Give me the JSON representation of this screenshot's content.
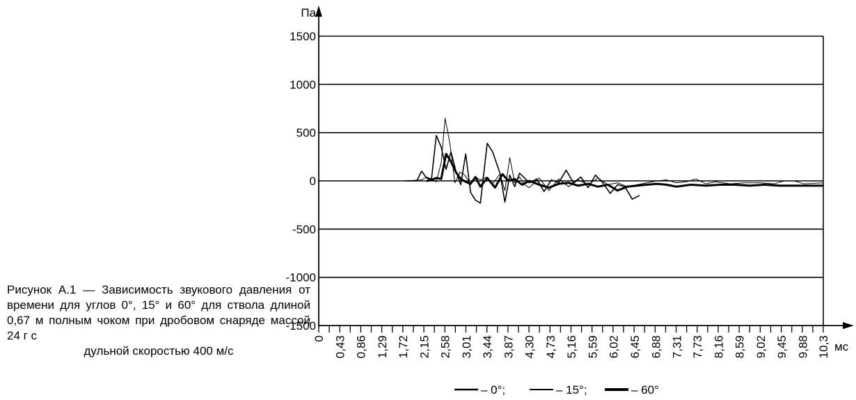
{
  "caption": {
    "text": "Рисунок А.1 — Зависимость звукового давления от времени для углов 0°, 15° и 60° для ствола длиной 0,67 м полным чоком при дробовом снаряде массой 24 г с",
    "last_line": "дульной скоростью 400 м/с"
  },
  "chart_data": {
    "type": "line",
    "title": "",
    "ylabel": "Па",
    "xlabel": "мс",
    "ylim": [
      -1500,
      1500
    ],
    "yticks": [
      1500,
      1000,
      500,
      0,
      -500,
      -1000,
      -1500
    ],
    "ytick_labels": [
      "1500",
      "1000",
      "500",
      "0",
      "-500",
      "-1000",
      "-1500"
    ],
    "xlim": [
      0,
      10.3
    ],
    "xticks": [
      0,
      0.43,
      0.86,
      1.29,
      1.72,
      2.15,
      2.58,
      3.01,
      3.44,
      3.87,
      4.3,
      4.73,
      5.16,
      5.59,
      6.02,
      6.45,
      6.88,
      7.31,
      7.73,
      8.16,
      8.59,
      9.02,
      9.45,
      9.88,
      10.3
    ],
    "xtick_labels": [
      "0",
      "0,43",
      "0,86",
      "1,29",
      "1,72",
      "2,15",
      "2,58",
      "3,01",
      "3,44",
      "3,87",
      "4,30",
      "4,73",
      "5,16",
      "5,59",
      "6,02",
      "6,45",
      "6,88",
      "7,31",
      "7,73",
      "8,16",
      "8,59",
      "9,02",
      "9,45",
      "9,88",
      "10,3"
    ],
    "grid": "horizontal",
    "legend_position": "bottom",
    "legend_separator": "; ",
    "series": [
      {
        "name": "– 0°",
        "color": "#000000",
        "x": [
          1.75,
          2.0,
          2.1,
          2.2,
          2.3,
          2.4,
          2.5,
          2.6,
          2.7,
          2.8,
          2.9,
          3.0,
          3.1,
          3.2,
          3.3,
          3.44,
          3.55,
          3.7,
          3.8,
          3.9,
          4.0,
          4.1,
          4.2,
          4.3,
          4.45,
          4.6,
          4.75,
          4.9,
          5.05,
          5.2,
          5.35,
          5.5,
          5.65,
          5.8,
          5.95,
          6.1,
          6.25,
          6.4,
          6.55
        ],
        "y": [
          0,
          0,
          100,
          30,
          10,
          470,
          350,
          120,
          300,
          100,
          -40,
          280,
          -120,
          -200,
          -230,
          390,
          300,
          80,
          -220,
          60,
          -60,
          80,
          30,
          -20,
          20,
          -110,
          10,
          -20,
          110,
          -20,
          40,
          -70,
          60,
          -20,
          -130,
          -40,
          -60,
          -190,
          -150
        ]
      },
      {
        "name": "– 15°",
        "color": "#000000",
        "x": [
          1.75,
          2.1,
          2.2,
          2.3,
          2.4,
          2.5,
          2.58,
          2.68,
          2.78,
          2.88,
          2.98,
          3.1,
          3.2,
          3.3,
          3.44,
          3.55,
          3.7,
          3.8,
          3.9,
          4.0,
          4.1,
          4.2,
          4.3,
          4.5,
          4.7,
          4.9,
          5.1,
          5.3,
          5.5,
          5.7,
          5.9,
          6.1,
          6.3,
          6.5,
          6.7,
          6.9,
          7.1,
          7.3,
          7.5,
          7.7,
          7.9,
          8.1,
          8.4,
          8.7,
          9.0,
          9.3,
          9.5,
          9.7,
          9.9,
          10.3
        ],
        "y": [
          0,
          10,
          40,
          20,
          -10,
          190,
          650,
          380,
          -20,
          90,
          60,
          -30,
          40,
          10,
          40,
          -30,
          70,
          -100,
          240,
          -20,
          40,
          -40,
          -70,
          30,
          -100,
          20,
          -60,
          10,
          -40,
          30,
          -40,
          -20,
          -60,
          -40,
          -20,
          0,
          10,
          -20,
          -10,
          20,
          -30,
          -10,
          -30,
          -20,
          -20,
          -30,
          0,
          0,
          -30,
          -20
        ]
      },
      {
        "name": "– 60°",
        "color": "#000000",
        "x": [
          2.2,
          2.3,
          2.4,
          2.5,
          2.6,
          2.7,
          2.8,
          2.9,
          3.0,
          3.1,
          3.2,
          3.3,
          3.44,
          3.6,
          3.75,
          3.87,
          4.0,
          4.15,
          4.3,
          4.5,
          4.7,
          4.9,
          5.1,
          5.3,
          5.5,
          5.7,
          5.9,
          6.1,
          6.3,
          6.5,
          6.7,
          6.9,
          7.1,
          7.3,
          7.6,
          7.9,
          8.2,
          8.5,
          8.8,
          9.1,
          9.4,
          9.7,
          10.0,
          10.3
        ],
        "y": [
          0,
          10,
          30,
          20,
          280,
          200,
          90,
          20,
          -10,
          -30,
          40,
          -60,
          30,
          -70,
          70,
          0,
          20,
          -40,
          0,
          -40,
          -70,
          -30,
          -20,
          -50,
          -30,
          -60,
          -40,
          -100,
          -60,
          -50,
          -40,
          -30,
          -40,
          -60,
          -40,
          -50,
          -40,
          -40,
          -50,
          -40,
          -50,
          -50,
          -50,
          -50
        ]
      }
    ]
  }
}
